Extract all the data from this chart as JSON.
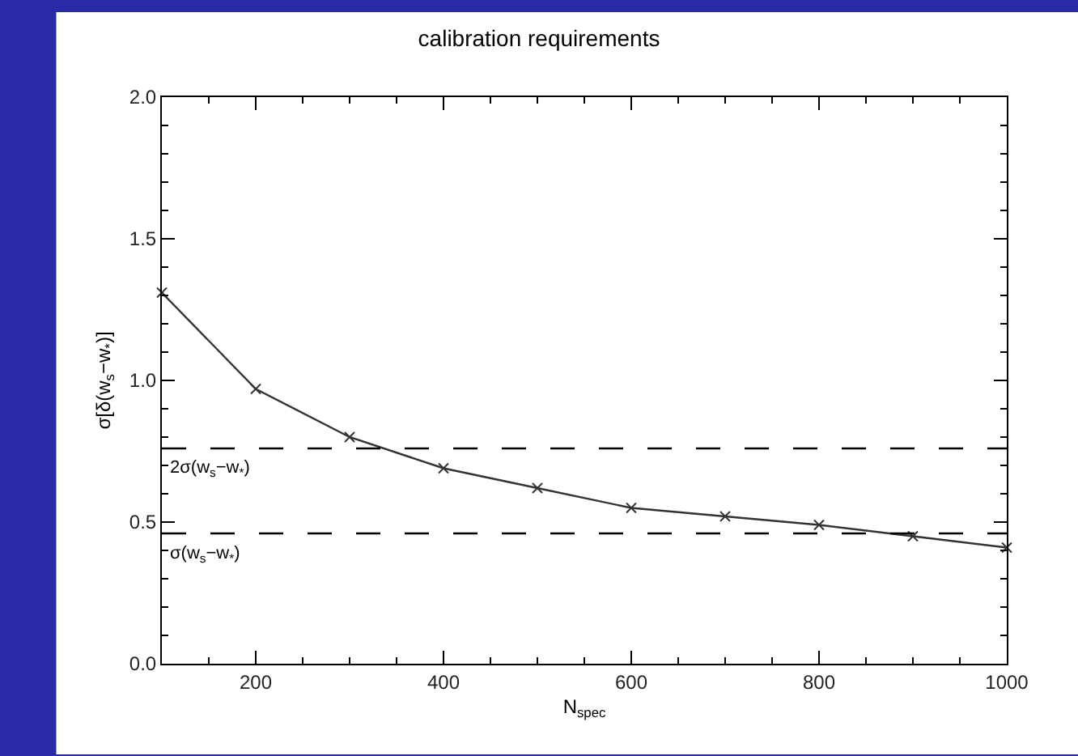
{
  "chart_data": {
    "type": "line",
    "title": "calibration requirements",
    "xlabel": "N$_{spec}$",
    "ylabel": "σ[δ(w$_{s}$−w$_{*}$)]",
    "x": [
      100,
      200,
      300,
      400,
      500,
      600,
      700,
      800,
      900,
      1000
    ],
    "series": [
      {
        "color": "#333333",
        "values": [
          1.31,
          0.97,
          0.8,
          0.69,
          0.62,
          0.55,
          0.52,
          0.49,
          0.45,
          0.41
        ]
      }
    ],
    "xlim": [
      100,
      1000
    ],
    "xticks": [
      200,
      400,
      600,
      800,
      1000
    ],
    "ylim": [
      0,
      2
    ],
    "yticks": [
      {
        "value": 0,
        "label": "0.0"
      },
      0.5,
      {
        "value": 1,
        "label": "1.0"
      },
      1.5,
      {
        "value": 2,
        "label": "2.0"
      }
    ],
    "ref_lines": [
      {
        "axis": "y",
        "value": 0.76,
        "label": "2σ(w$_{s}$−w$_{*}$)",
        "color": "#000000",
        "line_style": "dashed"
      },
      {
        "axis": "y",
        "value": 0.46,
        "label": "σ(w$_{s}$−w$_{*}$)",
        "color": "#000000",
        "line_style": "dashed"
      }
    ],
    "marker": "cross",
    "line_style": "solid"
  }
}
